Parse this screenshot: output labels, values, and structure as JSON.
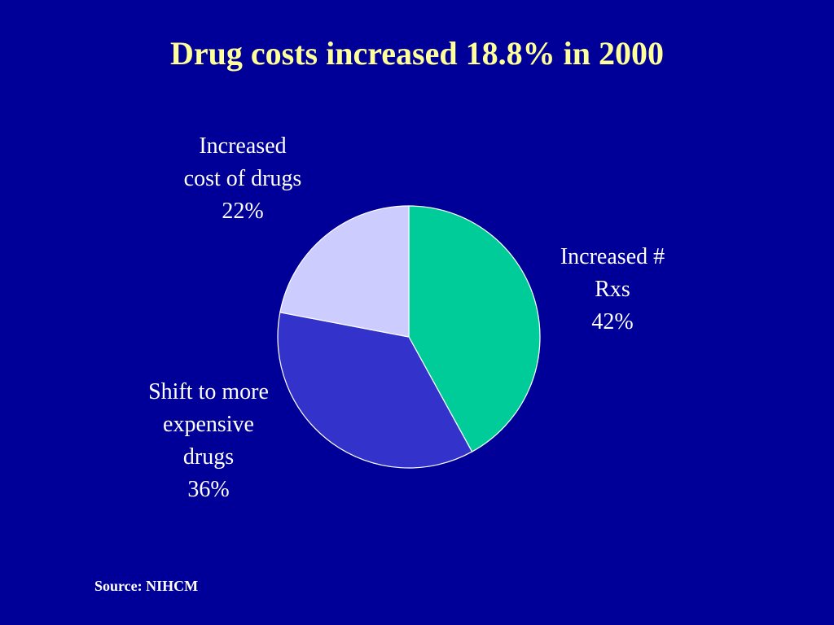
{
  "colors": {
    "background": "#000099",
    "title": "#ffff99",
    "text": "#ffffff"
  },
  "chart_data": {
    "type": "pie",
    "title": "Drug costs increased 18.8% in 2000",
    "slices": [
      {
        "label_lines": [
          "Increased #",
          "Rxs",
          "42%"
        ],
        "value": 42,
        "color": "#00cc99"
      },
      {
        "label_lines": [
          "Shift to more",
          "expensive",
          "drugs",
          "36%"
        ],
        "value": 36,
        "color": "#3333cc"
      },
      {
        "label_lines": [
          "Increased",
          "cost of drugs",
          "22%"
        ],
        "value": 22,
        "color": "#ccccff"
      }
    ],
    "start_angle_deg": 0,
    "direction": "clockwise"
  },
  "source": "Source: NIHCM"
}
